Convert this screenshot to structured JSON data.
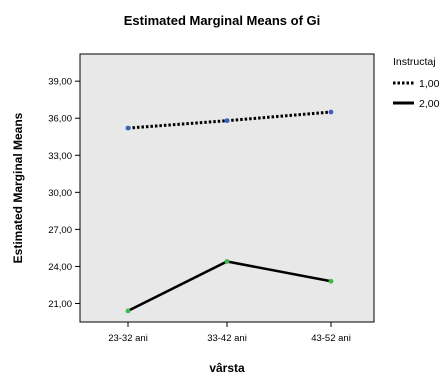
{
  "chart_data": {
    "type": "line",
    "title": "Estimated Marginal Means of Gi",
    "xlabel": "vârsta",
    "ylabel": "Estimated Marginal Means",
    "categories": [
      "23-32 ani",
      "33-42 ani",
      "43-52 ani"
    ],
    "yticks": [
      "21,00",
      "24,00",
      "27,00",
      "30,00",
      "33,00",
      "36,00",
      "39,00"
    ],
    "ylim": [
      19.5,
      41.2
    ],
    "grid": false,
    "legend_position": "right",
    "legend_title": "Instructaj",
    "plot_background": "#e8e8e8",
    "series": [
      {
        "name": "1,00",
        "values": [
          35.2,
          35.8,
          36.5
        ],
        "line_style": "dotted",
        "color": "#000000",
        "marker_color": "#3d5fbf"
      },
      {
        "name": "2,00",
        "values": [
          20.4,
          24.4,
          22.8
        ],
        "line_style": "solid",
        "color": "#000000",
        "marker_color": "#3fb84a"
      }
    ]
  }
}
